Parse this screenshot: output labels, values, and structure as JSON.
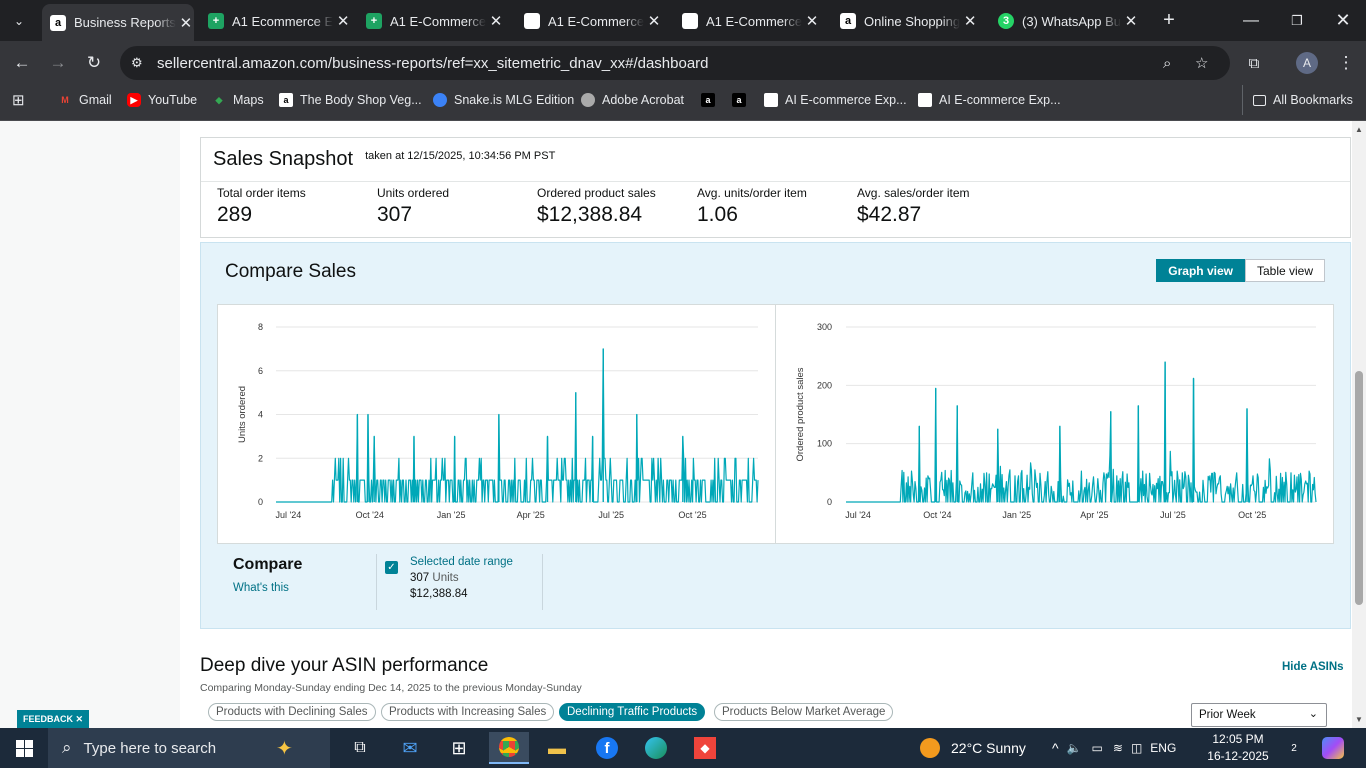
{
  "browser": {
    "tabs": [
      {
        "title": "Business Reports",
        "icon": "amazon-favicon",
        "active": true
      },
      {
        "title": "A1 Ecommerce E",
        "icon": "google-sheets-favicon"
      },
      {
        "title": "A1 E-Commerce",
        "icon": "google-sheets-favicon"
      },
      {
        "title": "A1 E-Commerce",
        "icon": "generic-favicon"
      },
      {
        "title": "A1 E-Commerce",
        "icon": "generic-favicon"
      },
      {
        "title": "Online Shopping",
        "icon": "amazon-favicon"
      },
      {
        "title": "(3) WhatsApp Bu",
        "icon": "whatsapp-favicon",
        "badge": "3"
      }
    ],
    "url": "sellercentral.amazon.com/business-reports/ref=xx_sitemetric_dnav_xx#/dashboard",
    "profile_initial": "A",
    "bookmarks": [
      {
        "label": "Gmail",
        "icon": "gmail-icon"
      },
      {
        "label": "YouTube",
        "icon": "youtube-icon"
      },
      {
        "label": "Maps",
        "icon": "maps-icon"
      },
      {
        "label": "The Body Shop Veg...",
        "icon": "amazon-favicon"
      },
      {
        "label": "Snake.is MLG Edition",
        "icon": "snake-icon"
      },
      {
        "label": "Adobe Acrobat",
        "icon": "acrobat-icon"
      },
      {
        "label": "",
        "icon": "amazon-favicon"
      },
      {
        "label": "",
        "icon": "amazon-favicon"
      },
      {
        "label": "AI E-commerce Exp...",
        "icon": "generic-favicon"
      },
      {
        "label": "AI E-commerce Exp...",
        "icon": "generic-favicon"
      }
    ],
    "all_bookmarks": "All Bookmarks"
  },
  "snapshot": {
    "title": "Sales Snapshot",
    "taken": "taken at 12/15/2025, 10:34:56 PM PST",
    "metrics": [
      {
        "label": "Total order items",
        "value": "289"
      },
      {
        "label": "Units ordered",
        "value": "307"
      },
      {
        "label": "Ordered product sales",
        "value": "$12,388.84"
      },
      {
        "label": "Avg. units/order item",
        "value": "1.06"
      },
      {
        "label": "Avg. sales/order item",
        "value": "$42.87"
      }
    ]
  },
  "compare": {
    "title": "Compare Sales",
    "graph_view": "Graph view",
    "table_view": "Table view",
    "compare_label": "Compare",
    "whats_this": "What's this",
    "selected_range": "Selected date range",
    "units_value": "307",
    "units_word": "Units",
    "sales_value": "$12,388.84"
  },
  "chart_data": [
    {
      "type": "bar",
      "ylabel": "Units ordered",
      "ylim": [
        0,
        8
      ],
      "yticks": [
        "0",
        "2",
        "4",
        "6",
        "8"
      ],
      "xticks": [
        "Jul '24",
        "Oct '24",
        "Jan '25",
        "Apr '25",
        "Jul '25",
        "Oct '25"
      ],
      "x_start": "2024-06-17",
      "x_end": "2025-12-14",
      "series_color": "#00a8b8",
      "peaks": [
        {
          "date": "2024-09-17",
          "value": 4
        },
        {
          "date": "2024-09-29",
          "value": 4
        },
        {
          "date": "2024-10-06",
          "value": 3
        },
        {
          "date": "2024-11-20",
          "value": 3
        },
        {
          "date": "2025-01-05",
          "value": 3
        },
        {
          "date": "2025-02-24",
          "value": 4
        },
        {
          "date": "2025-04-20",
          "value": 3
        },
        {
          "date": "2025-05-22",
          "value": 5
        },
        {
          "date": "2025-06-10",
          "value": 3
        },
        {
          "date": "2025-06-22",
          "value": 7
        },
        {
          "date": "2025-07-30",
          "value": 4
        },
        {
          "date": "2025-09-20",
          "value": 3
        }
      ]
    },
    {
      "type": "bar",
      "ylabel": "Ordered product sales",
      "ylim": [
        0,
        300
      ],
      "yticks": [
        "0",
        "100",
        "200",
        "300"
      ],
      "xticks": [
        "Jul '24",
        "Oct '24",
        "Jan '25",
        "Apr '25",
        "Jul '25",
        "Oct '25"
      ],
      "x_start": "2024-06-17",
      "x_end": "2025-12-14",
      "series_color": "#00a8b8",
      "peaks": [
        {
          "date": "2024-09-10",
          "value": 130
        },
        {
          "date": "2024-09-29",
          "value": 195
        },
        {
          "date": "2024-10-24",
          "value": 165
        },
        {
          "date": "2024-12-10",
          "value": 125
        },
        {
          "date": "2025-02-20",
          "value": 130
        },
        {
          "date": "2025-04-20",
          "value": 155
        },
        {
          "date": "2025-05-22",
          "value": 165
        },
        {
          "date": "2025-06-22",
          "value": 240
        },
        {
          "date": "2025-07-25",
          "value": 212
        },
        {
          "date": "2025-09-25",
          "value": 160
        }
      ]
    }
  ],
  "deep_dive": {
    "title": "Deep dive your ASIN performance",
    "hide_asins": "Hide ASINs",
    "subtitle": "Comparing Monday-Sunday ending Dec 14, 2025 to the previous Monday-Sunday",
    "filters": [
      "Products with Declining Sales",
      "Products with Increasing Sales",
      "Declining Traffic Products",
      "Products Below Market Average"
    ],
    "active_filter": "Declining Traffic Products",
    "period_select": "Prior Week"
  },
  "feedback": "FEEDBACK ✕",
  "taskbar": {
    "search_placeholder": "Type here to search",
    "weather": "22°C  Sunny",
    "language": "ENG",
    "time": "12:05 PM",
    "date": "16-12-2025",
    "notifications": "2"
  }
}
